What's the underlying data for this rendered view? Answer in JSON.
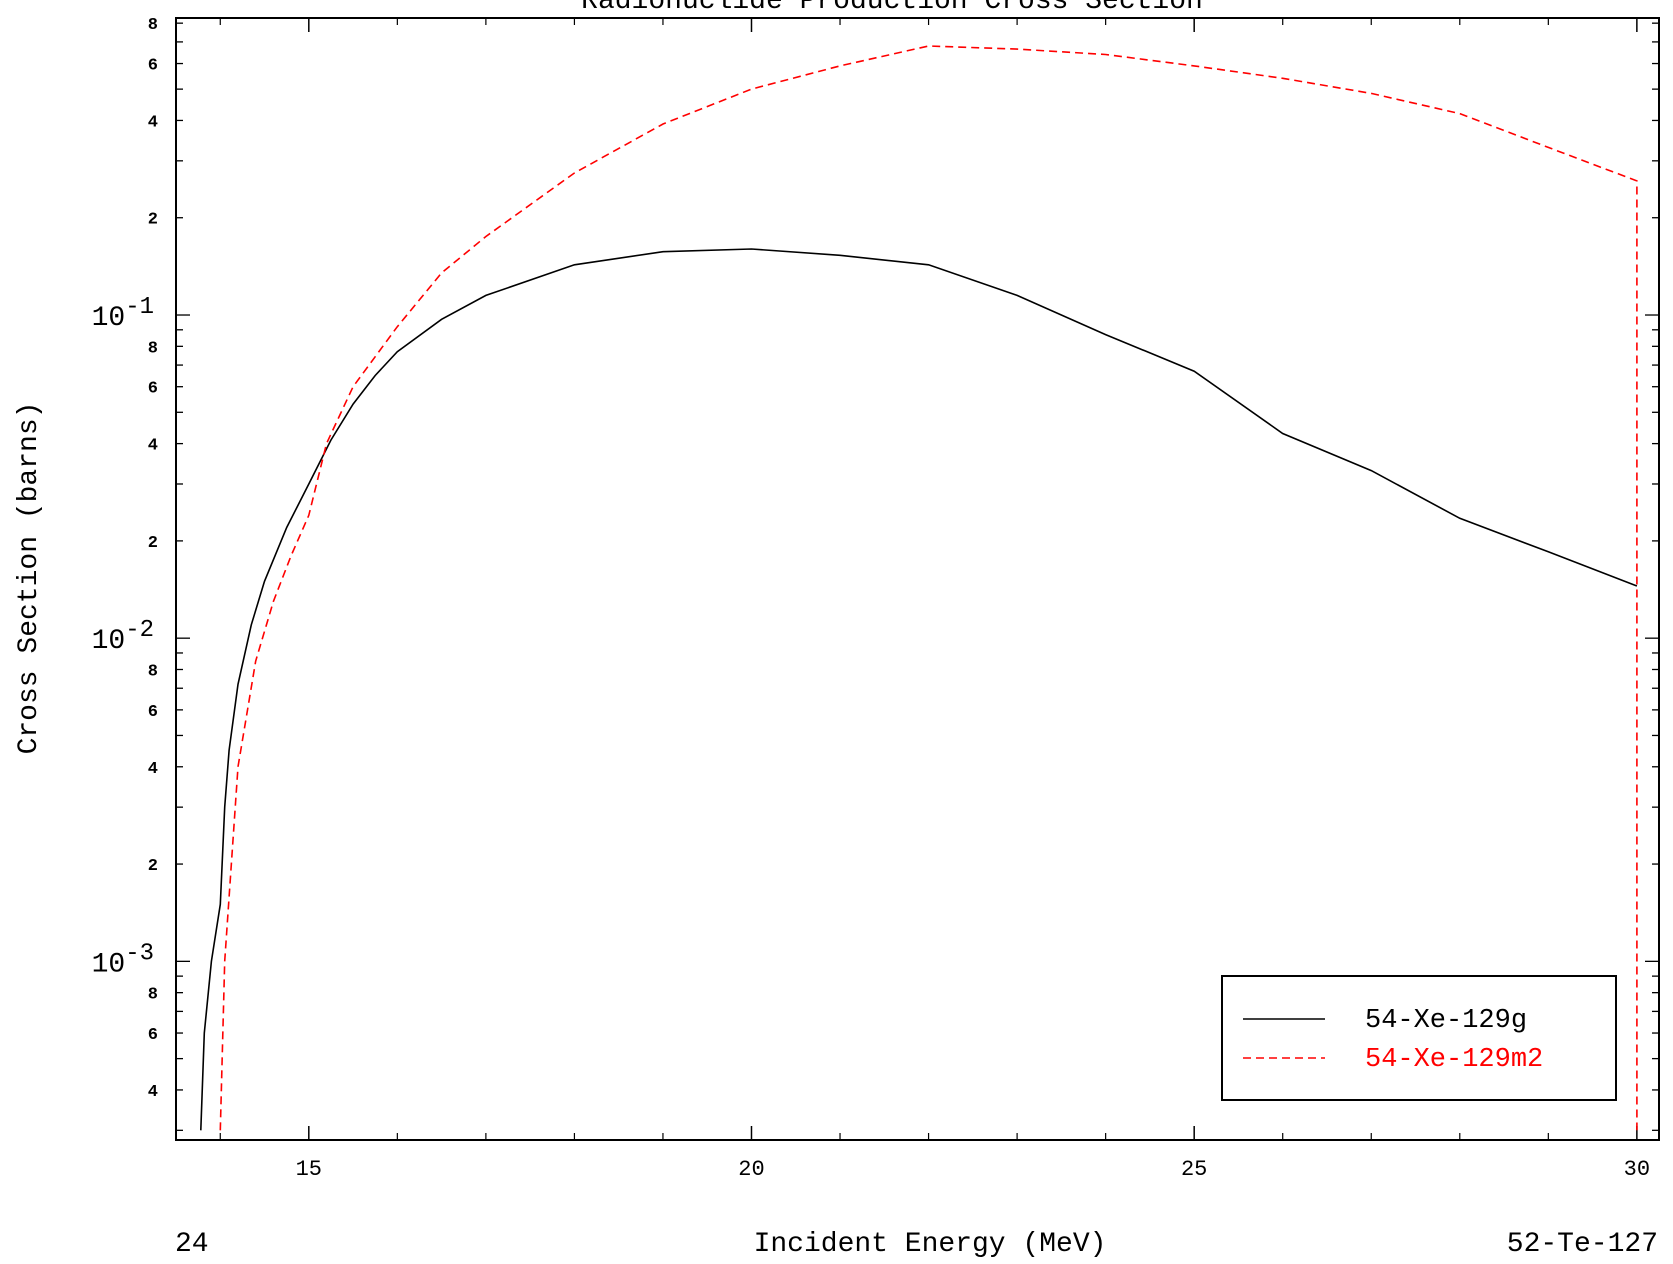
{
  "chart_data": {
    "type": "line",
    "title": "Radionuclide Production Cross Section",
    "xlabel": "Incident Energy (MeV)",
    "ylabel": "Cross Section (barns)",
    "xlim": [
      13.5,
      30.25
    ],
    "ylim": [
      0.00028,
      0.83
    ],
    "y_scale": "log",
    "x_ticks": [
      15,
      20,
      25,
      30
    ],
    "x_tick_labels": [
      "15",
      "20",
      "25",
      "30"
    ],
    "y_decades": [
      {
        "value": 0.1,
        "base": "10",
        "exp": "-1"
      },
      {
        "value": 0.01,
        "base": "10",
        "exp": "-2"
      },
      {
        "value": 0.001,
        "base": "10",
        "exp": "-3"
      }
    ],
    "y_minor_labels": [
      {
        "value": 0.8,
        "label": "8"
      },
      {
        "value": 0.6,
        "label": "6"
      },
      {
        "value": 0.4,
        "label": "4"
      },
      {
        "value": 0.2,
        "label": "2"
      },
      {
        "value": 0.08,
        "label": "8"
      },
      {
        "value": 0.06,
        "label": "6"
      },
      {
        "value": 0.04,
        "label": "4"
      },
      {
        "value": 0.02,
        "label": "2"
      },
      {
        "value": 0.008,
        "label": "8"
      },
      {
        "value": 0.006,
        "label": "6"
      },
      {
        "value": 0.004,
        "label": "4"
      },
      {
        "value": 0.002,
        "label": "2"
      },
      {
        "value": 0.0008,
        "label": "8"
      },
      {
        "value": 0.0006,
        "label": "6"
      },
      {
        "value": 0.0004,
        "label": "4"
      }
    ],
    "legend_position": "bottom-right",
    "footer_left": "24",
    "footer_right": "52-Te-127",
    "series": [
      {
        "name": "54-Xe-129g",
        "color": "#000000",
        "style": "solid",
        "x": [
          13.78,
          13.82,
          13.9,
          14.0,
          14.05,
          14.1,
          14.2,
          14.35,
          14.5,
          14.75,
          15.0,
          15.25,
          15.5,
          15.75,
          16.0,
          16.5,
          17.0,
          18.0,
          19.0,
          20.0,
          21.0,
          22.0,
          23.0,
          24.0,
          25.0,
          26.0,
          27.0,
          28.0,
          29.0,
          30.0
        ],
        "y": [
          0.0003,
          0.0006,
          0.001,
          0.0015,
          0.003,
          0.0045,
          0.0072,
          0.011,
          0.015,
          0.022,
          0.03,
          0.041,
          0.053,
          0.065,
          0.077,
          0.097,
          0.115,
          0.143,
          0.157,
          0.16,
          0.153,
          0.143,
          0.115,
          0.087,
          0.067,
          0.043,
          0.033,
          0.0235,
          0.0185,
          0.0145
        ]
      },
      {
        "name": "54-Xe-129m2",
        "color": "#ff0000",
        "style": "dashed",
        "x": [
          14.0,
          14.05,
          14.2,
          14.4,
          14.6,
          14.8,
          15.0,
          15.2,
          15.5,
          16.0,
          16.5,
          17.0,
          18.0,
          19.0,
          20.0,
          21.0,
          22.0,
          23.0,
          24.0,
          25.0,
          26.0,
          27.0,
          28.0,
          29.0,
          30.0,
          30.0
        ],
        "y": [
          0.0003,
          0.001,
          0.004,
          0.0085,
          0.013,
          0.018,
          0.024,
          0.04,
          0.06,
          0.092,
          0.135,
          0.175,
          0.275,
          0.39,
          0.5,
          0.59,
          0.68,
          0.665,
          0.64,
          0.59,
          0.54,
          0.485,
          0.42,
          0.33,
          0.26,
          0.0003
        ]
      }
    ]
  }
}
